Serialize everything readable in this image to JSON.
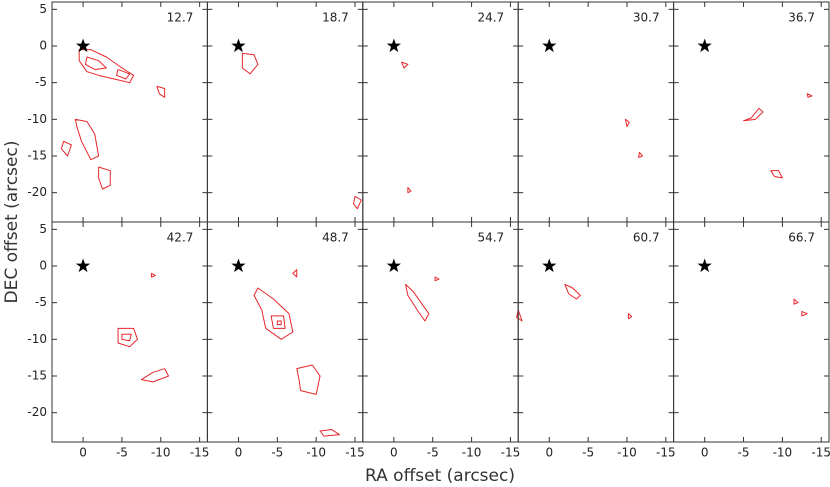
{
  "chart_data": {
    "type": "contour-grid",
    "xlabel": "RA offset (arcsec)",
    "ylabel": "DEC offset (arcsec)",
    "xlim": [
      4,
      -16
    ],
    "ylim": [
      -24,
      6
    ],
    "xticks": [
      0,
      -5,
      -10,
      -15
    ],
    "yticks": [
      5,
      0,
      -5,
      -10,
      -15,
      -20
    ],
    "color": "#e8262a",
    "source": [
      0,
      0
    ],
    "panels": [
      {
        "label": "12.7",
        "contours": [
          [
            [
              0.5,
              -0.5
            ],
            [
              -1,
              -0.5
            ],
            [
              -3,
              -1.5
            ],
            [
              -5,
              -3
            ],
            [
              -6.5,
              -4
            ],
            [
              -6,
              -5
            ],
            [
              -4,
              -4.5
            ],
            [
              -2,
              -4
            ],
            [
              -0.5,
              -3.5
            ],
            [
              0.5,
              -2
            ]
          ],
          [
            [
              -0.5,
              -1.5
            ],
            [
              -2,
              -2
            ],
            [
              -3,
              -3
            ],
            [
              -1.5,
              -3.2
            ],
            [
              -0.3,
              -2.5
            ]
          ],
          [
            [
              -4.5,
              -3.2
            ],
            [
              -6,
              -3.8
            ],
            [
              -5.5,
              -4.5
            ],
            [
              -4.3,
              -4
            ]
          ],
          [
            [
              1,
              -10
            ],
            [
              -0.5,
              -10.3
            ],
            [
              -1.5,
              -12
            ],
            [
              -2,
              -15
            ],
            [
              -1,
              -15.5
            ],
            [
              0.2,
              -13
            ],
            [
              0.8,
              -11
            ]
          ],
          [
            [
              -2,
              -16.5
            ],
            [
              -3.5,
              -17
            ],
            [
              -3.5,
              -19
            ],
            [
              -2.5,
              -19.5
            ],
            [
              -2,
              -18
            ]
          ],
          [
            [
              -9.5,
              -5.5
            ],
            [
              -10.5,
              -5.8
            ],
            [
              -10.5,
              -7
            ],
            [
              -9.8,
              -6.5
            ]
          ],
          [
            [
              2.5,
              -13
            ],
            [
              1.5,
              -13.5
            ],
            [
              2,
              -15
            ],
            [
              2.8,
              -14
            ]
          ]
        ]
      },
      {
        "label": "18.7",
        "contours": [
          [
            [
              -0.5,
              -1
            ],
            [
              -2,
              -1.2
            ],
            [
              -2.5,
              -2.5
            ],
            [
              -1.5,
              -3.8
            ],
            [
              -0.5,
              -3
            ]
          ],
          [
            [
              -15,
              -20.5
            ],
            [
              -15.8,
              -21
            ],
            [
              -15.3,
              -22.2
            ],
            [
              -14.8,
              -21.5
            ]
          ]
        ]
      },
      {
        "label": "24.7",
        "contours": [
          [
            [
              -1,
              -2.2
            ],
            [
              -1.8,
              -2.5
            ],
            [
              -1.3,
              -3
            ]
          ],
          [
            [
              -1.8,
              -19.3
            ],
            [
              -2.2,
              -19.8
            ],
            [
              -1.8,
              -20
            ]
          ]
        ]
      },
      {
        "label": "30.7",
        "contours": [
          [
            [
              -9.8,
              -10
            ],
            [
              -10.3,
              -10.4
            ],
            [
              -10,
              -11
            ]
          ],
          [
            [
              -11.6,
              -14.5
            ],
            [
              -12,
              -15
            ],
            [
              -11.5,
              -15.2
            ]
          ]
        ]
      },
      {
        "label": "36.7",
        "contours": [
          [
            [
              -7,
              -8.5
            ],
            [
              -6,
              -9.8
            ],
            [
              -5,
              -10.2
            ],
            [
              -6.5,
              -10
            ],
            [
              -7.5,
              -9
            ]
          ],
          [
            [
              -8.5,
              -17
            ],
            [
              -9.5,
              -17
            ],
            [
              -10,
              -18
            ],
            [
              -9,
              -17.8
            ]
          ],
          [
            [
              -13.2,
              -6.5
            ],
            [
              -13.8,
              -6.8
            ],
            [
              -13.3,
              -7
            ]
          ]
        ]
      },
      {
        "label": "42.7",
        "contours": [
          [
            [
              -4.5,
              -8.5
            ],
            [
              -6.5,
              -8.5
            ],
            [
              -7,
              -10
            ],
            [
              -6,
              -11
            ],
            [
              -4.5,
              -10.5
            ]
          ],
          [
            [
              -5,
              -9.3
            ],
            [
              -6.2,
              -9.3
            ],
            [
              -6,
              -10.2
            ],
            [
              -5,
              -10
            ]
          ],
          [
            [
              -7.5,
              -15.5
            ],
            [
              -9,
              -14.5
            ],
            [
              -10.5,
              -14
            ],
            [
              -11,
              -15
            ],
            [
              -9,
              -15.8
            ]
          ],
          [
            [
              -8.8,
              -1
            ],
            [
              -9.3,
              -1.3
            ],
            [
              -8.8,
              -1.5
            ]
          ]
        ]
      },
      {
        "label": "48.7",
        "contours": [
          [
            [
              -2.5,
              -3
            ],
            [
              -4.5,
              -4.5
            ],
            [
              -6.5,
              -6.5
            ],
            [
              -7,
              -9
            ],
            [
              -5.5,
              -10
            ],
            [
              -3.5,
              -8.5
            ],
            [
              -3,
              -6
            ],
            [
              -2,
              -4
            ]
          ],
          [
            [
              -4.2,
              -6.8
            ],
            [
              -5.8,
              -6.8
            ],
            [
              -6,
              -8.5
            ],
            [
              -4.5,
              -8.5
            ]
          ],
          [
            [
              -5,
              -7.5
            ],
            [
              -5.5,
              -7.5
            ],
            [
              -5.5,
              -8
            ],
            [
              -5,
              -8
            ]
          ],
          [
            [
              -7.5,
              -14
            ],
            [
              -9.5,
              -13.5
            ],
            [
              -10.5,
              -15
            ],
            [
              -10,
              -17.5
            ],
            [
              -8,
              -17
            ],
            [
              -7.8,
              -15.5
            ]
          ],
          [
            [
              -7,
              -1
            ],
            [
              -7.5,
              -0.5
            ],
            [
              -7.5,
              -1.5
            ]
          ],
          [
            [
              -10.5,
              -22.5
            ],
            [
              -12,
              -22.3
            ],
            [
              -13,
              -23
            ],
            [
              -11,
              -23.2
            ]
          ]
        ]
      },
      {
        "label": "54.7",
        "contours": [
          [
            [
              -1.5,
              -2.5
            ],
            [
              -2.5,
              -3.5
            ],
            [
              -3.5,
              -5
            ],
            [
              -4.5,
              -6.5
            ],
            [
              -4,
              -7.5
            ],
            [
              -3,
              -6
            ],
            [
              -1.8,
              -4
            ]
          ],
          [
            [
              -5.3,
              -1.5
            ],
            [
              -5.8,
              -1.8
            ],
            [
              -5.3,
              -2
            ]
          ],
          [
            [
              -16,
              -6
            ],
            [
              -16.5,
              -7.5
            ],
            [
              -15.8,
              -7
            ]
          ]
        ]
      },
      {
        "label": "60.7",
        "contours": [
          [
            [
              -2,
              -2.5
            ],
            [
              -3,
              -3
            ],
            [
              -4,
              -4
            ],
            [
              -3.5,
              -4.5
            ],
            [
              -2.5,
              -3.8
            ]
          ],
          [
            [
              -10.2,
              -6.5
            ],
            [
              -10.6,
              -6.9
            ],
            [
              -10.2,
              -7.2
            ]
          ]
        ]
      },
      {
        "label": "66.7",
        "contours": [
          [
            [
              -11.5,
              -4.5
            ],
            [
              -12,
              -5
            ],
            [
              -11.5,
              -5.2
            ]
          ],
          [
            [
              -12.5,
              -6.2
            ],
            [
              -13.2,
              -6.5
            ],
            [
              -12.5,
              -6.8
            ]
          ]
        ]
      }
    ]
  }
}
